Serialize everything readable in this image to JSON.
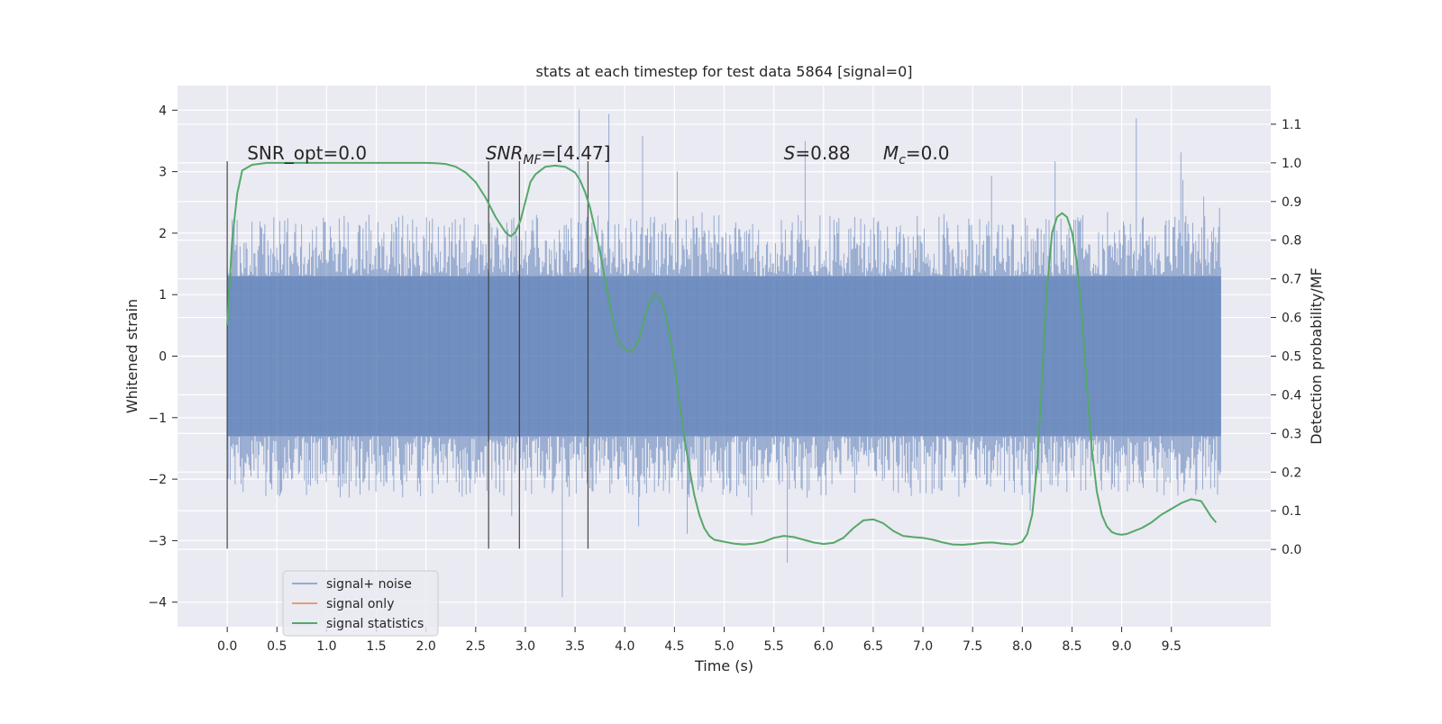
{
  "chart_data": {
    "type": "line",
    "title": "stats at each timestep for test data 5864 [signal=0]",
    "xlabel": "Time (s)",
    "ylabel_left": "Whitened strain",
    "ylabel_right": "Detection probability/MF",
    "xlim": [
      -0.5,
      10.5
    ],
    "ylim_left": [
      -4.4,
      4.4
    ],
    "ylim_right": [
      -0.2,
      1.2
    ],
    "x_ticks": [
      0.0,
      0.5,
      1.0,
      1.5,
      2.0,
      2.5,
      3.0,
      3.5,
      4.0,
      4.5,
      5.0,
      5.5,
      6.0,
      6.5,
      7.0,
      7.5,
      8.0,
      8.5,
      9.0,
      9.5
    ],
    "x_tick_labels": [
      "0.0",
      "0.5",
      "1.0",
      "1.5",
      "2.0",
      "2.5",
      "3.0",
      "3.5",
      "4.0",
      "4.5",
      "5.0",
      "5.5",
      "6.0",
      "6.5",
      "7.0",
      "7.5",
      "8.0",
      "8.5",
      "9.0",
      "9.5"
    ],
    "y_ticks_left": [
      -4,
      -3,
      -2,
      -1,
      0,
      1,
      2,
      3,
      4
    ],
    "y_tick_labels_left": [
      "−4",
      "−3",
      "−2",
      "−1",
      "0",
      "1",
      "2",
      "3",
      "4"
    ],
    "y_ticks_right": [
      0.0,
      0.1,
      0.2,
      0.3,
      0.4,
      0.5,
      0.6,
      0.7,
      0.8,
      0.9,
      1.0,
      1.1
    ],
    "y_tick_labels_right": [
      "0.0",
      "0.1",
      "0.2",
      "0.3",
      "0.4",
      "0.5",
      "0.6",
      "0.7",
      "0.8",
      "0.9",
      "1.0",
      "1.1"
    ],
    "grid": true,
    "legend_position": "lower-left",
    "series": [
      {
        "name": "signal+ noise",
        "color": "#4c72b0",
        "axis": "left",
        "style": "dense noise trace",
        "x_range": [
          0.0,
          10.0
        ],
        "core_amplitude": 1.3,
        "typical_peak": 2.0,
        "extreme_range": [
          -4.0,
          4.05
        ]
      },
      {
        "name": "signal only",
        "color": "#dd8452",
        "axis": "left",
        "x": [],
        "values": []
      },
      {
        "name": "signal statistics",
        "color": "#55a868",
        "axis": "right",
        "x": [
          0.0,
          0.05,
          0.1,
          0.15,
          0.25,
          0.4,
          0.6,
          1.0,
          1.5,
          2.0,
          2.1,
          2.2,
          2.3,
          2.4,
          2.5,
          2.6,
          2.7,
          2.8,
          2.85,
          2.9,
          2.95,
          3.0,
          3.05,
          3.1,
          3.2,
          3.3,
          3.4,
          3.5,
          3.55,
          3.6,
          3.65,
          3.7,
          3.75,
          3.8,
          3.85,
          3.9,
          3.95,
          4.0,
          4.05,
          4.1,
          4.15,
          4.2,
          4.25,
          4.3,
          4.35,
          4.4,
          4.45,
          4.5,
          4.55,
          4.6,
          4.65,
          4.7,
          4.75,
          4.8,
          4.85,
          4.9,
          5.0,
          5.1,
          5.2,
          5.3,
          5.4,
          5.5,
          5.6,
          5.7,
          5.8,
          5.9,
          6.0,
          6.1,
          6.2,
          6.3,
          6.4,
          6.5,
          6.6,
          6.7,
          6.8,
          6.9,
          7.0,
          7.1,
          7.2,
          7.3,
          7.4,
          7.5,
          7.6,
          7.7,
          7.8,
          7.9,
          7.95,
          8.0,
          8.05,
          8.1,
          8.15,
          8.2,
          8.25,
          8.3,
          8.35,
          8.4,
          8.45,
          8.5,
          8.55,
          8.6,
          8.65,
          8.7,
          8.75,
          8.8,
          8.85,
          8.9,
          8.95,
          9.0,
          9.05,
          9.1,
          9.2,
          9.3,
          9.4,
          9.5,
          9.6,
          9.7,
          9.8,
          9.85,
          9.9,
          9.95
        ],
        "values": [
          0.58,
          0.8,
          0.92,
          0.98,
          0.995,
          1.0,
          1.0,
          1.0,
          1.0,
          1.0,
          0.999,
          0.997,
          0.99,
          0.975,
          0.95,
          0.91,
          0.86,
          0.82,
          0.81,
          0.82,
          0.85,
          0.9,
          0.95,
          0.97,
          0.99,
          0.993,
          0.99,
          0.975,
          0.955,
          0.925,
          0.885,
          0.83,
          0.77,
          0.7,
          0.63,
          0.57,
          0.53,
          0.52,
          0.51,
          0.52,
          0.55,
          0.6,
          0.64,
          0.66,
          0.65,
          0.62,
          0.56,
          0.48,
          0.38,
          0.29,
          0.21,
          0.14,
          0.09,
          0.055,
          0.035,
          0.025,
          0.02,
          0.015,
          0.013,
          0.015,
          0.02,
          0.03,
          0.035,
          0.032,
          0.025,
          0.018,
          0.014,
          0.017,
          0.03,
          0.055,
          0.075,
          0.078,
          0.068,
          0.048,
          0.035,
          0.032,
          0.03,
          0.025,
          0.018,
          0.013,
          0.012,
          0.014,
          0.017,
          0.018,
          0.015,
          0.013,
          0.015,
          0.02,
          0.04,
          0.09,
          0.22,
          0.45,
          0.68,
          0.82,
          0.86,
          0.87,
          0.86,
          0.82,
          0.74,
          0.6,
          0.42,
          0.26,
          0.15,
          0.09,
          0.06,
          0.045,
          0.04,
          0.038,
          0.04,
          0.045,
          0.055,
          0.07,
          0.09,
          0.105,
          0.12,
          0.13,
          0.125,
          0.105,
          0.085,
          0.07
        ]
      }
    ],
    "markers": {
      "x": [
        0.0,
        2.63,
        2.94,
        3.63
      ],
      "y_range_left": [
        -3.13,
        3.17
      ],
      "color": "#404040"
    },
    "annotations": [
      {
        "id": "snr-opt",
        "parts": [
          {
            "text": "SNR_opt=0.0",
            "italic": false
          }
        ],
        "x": 0.2,
        "y": 3.2
      },
      {
        "id": "snr-mf",
        "parts": [
          {
            "text": "SNR",
            "italic": true
          },
          {
            "text": "MF",
            "italic": true,
            "sub": true
          },
          {
            "text": "=[4.47]",
            "italic": false
          }
        ],
        "x": 2.6,
        "y": 3.2
      },
      {
        "id": "s-value",
        "parts": [
          {
            "text": "S",
            "italic": true
          },
          {
            "text": "=0.88",
            "italic": false
          }
        ],
        "x": 5.6,
        "y": 3.2
      },
      {
        "id": "mc-value",
        "parts": [
          {
            "text": "M",
            "italic": true
          },
          {
            "text": "c",
            "italic": true,
            "sub": true
          },
          {
            "text": "=0.0",
            "italic": false
          }
        ],
        "x": 6.6,
        "y": 3.2
      }
    ]
  },
  "colors": {
    "figure_bg": "#ffffff",
    "axes_bg": "#eaeaf2",
    "grid": "#ffffff",
    "text": "#262626"
  }
}
